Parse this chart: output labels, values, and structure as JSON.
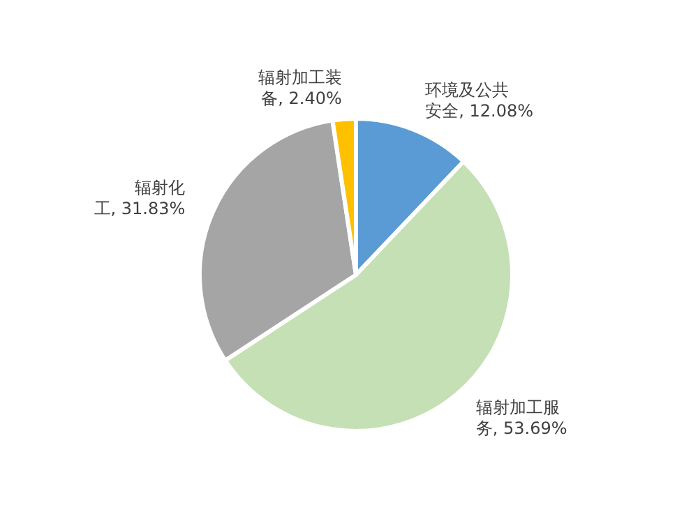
{
  "chart_data": {
    "type": "pie",
    "categories": [
      "环境及公共安全",
      "辐射加工服务",
      "辐射化工",
      "辐射加工装备"
    ],
    "values": [
      12.08,
      53.69,
      31.83,
      2.4
    ],
    "value_labels": [
      "12.08%",
      "53.69%",
      "31.83%",
      "2.40%"
    ],
    "colors": [
      "#5b9bd5",
      "#c5e0b4",
      "#a5a5a5",
      "#ffc000"
    ],
    "legend": false
  }
}
